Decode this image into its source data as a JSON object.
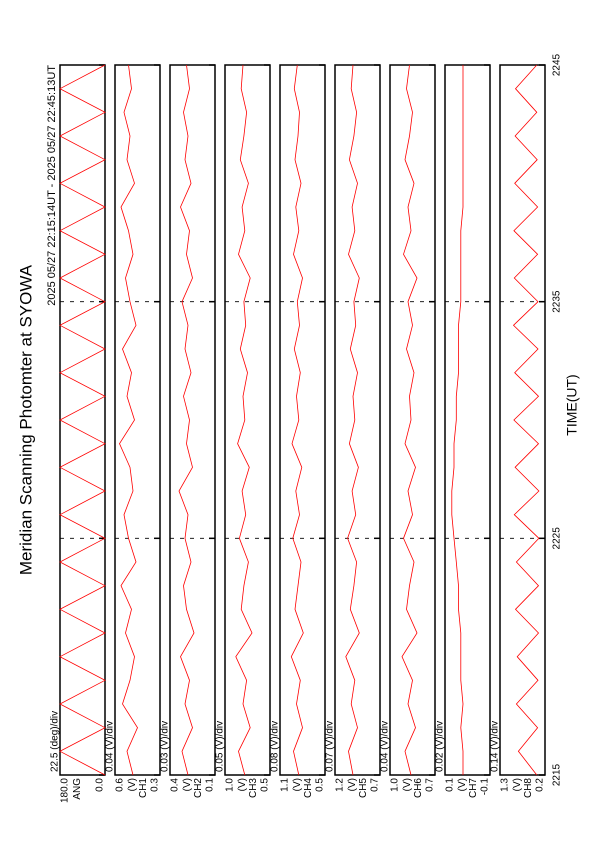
{
  "chart_data": {
    "type": "line",
    "title": "Meridian Scanning Photomter at SYOWA",
    "subtitle": "2025 05/27 22:15:14UT - 2025 05/27 22:45:13UT",
    "xlabel": "TIME(UT)",
    "x": [
      2215,
      2216,
      2217,
      2218,
      2219,
      2220,
      2221,
      2222,
      2223,
      2224,
      2225,
      2226,
      2227,
      2228,
      2229,
      2230,
      2231,
      2232,
      2233,
      2234,
      2235,
      2236,
      2237,
      2238,
      2239,
      2240,
      2241,
      2242,
      2243,
      2244,
      2245
    ],
    "xlim": [
      2215,
      2245
    ],
    "xticks": [
      2215,
      2225,
      2235,
      2245
    ],
    "grid": true,
    "panels": [
      {
        "scale_label": "22.5 (deg)/div",
        "ylabel": "ANG",
        "color": "#ff0000",
        "ylim": [
          0,
          180
        ],
        "yticks": [
          {
            "value": 0,
            "label": "0.0"
          },
          {
            "value": 180,
            "label": "180.0"
          }
        ],
        "values": [
          0,
          180,
          0,
          180,
          0,
          180,
          0,
          180,
          0,
          180,
          0,
          180,
          0,
          180,
          0,
          180,
          0,
          180,
          0,
          180,
          0,
          180,
          0,
          180,
          0,
          180,
          0,
          180,
          0,
          180,
          0
        ]
      },
      {
        "scale_label": "0.04 (V)/div",
        "ylabel": "(V)",
        "channel": "CH1",
        "color": "#ff0000",
        "ylim": [
          0.3,
          0.6
        ],
        "yticks": [
          0.3,
          0.6
        ],
        "values": [
          0.48,
          0.52,
          0.45,
          0.55,
          0.5,
          0.47,
          0.53,
          0.49,
          0.56,
          0.46,
          0.51,
          0.54,
          0.48,
          0.5,
          0.57,
          0.47,
          0.52,
          0.49,
          0.55,
          0.46,
          0.5,
          0.53,
          0.48,
          0.51,
          0.56,
          0.47,
          0.52,
          0.5,
          0.54,
          0.49,
          0.51
        ]
      },
      {
        "scale_label": "0.03 (V)/div",
        "ylabel": "(V)",
        "channel": "CH2",
        "color": "#ff0000",
        "ylim": [
          0.1,
          0.4
        ],
        "yticks": [
          0.1,
          0.4
        ],
        "values": [
          0.28,
          0.32,
          0.25,
          0.3,
          0.27,
          0.33,
          0.24,
          0.29,
          0.31,
          0.26,
          0.3,
          0.28,
          0.34,
          0.25,
          0.29,
          0.27,
          0.31,
          0.26,
          0.3,
          0.28,
          0.32,
          0.25,
          0.29,
          0.27,
          0.33,
          0.26,
          0.3,
          0.28,
          0.31,
          0.27,
          0.29
        ]
      },
      {
        "scale_label": "0.05 (V)/div",
        "ylabel": "(V)",
        "channel": "CH3",
        "color": "#ff0000",
        "ylim": [
          0.5,
          1.0
        ],
        "yticks": [
          0.5,
          {
            "value": 1.0,
            "label": "1.0"
          }
        ],
        "values": [
          0.78,
          0.85,
          0.72,
          0.8,
          0.76,
          0.88,
          0.7,
          0.82,
          0.79,
          0.74,
          0.84,
          0.77,
          0.81,
          0.73,
          0.86,
          0.78,
          0.8,
          0.75,
          0.83,
          0.77,
          0.79,
          0.72,
          0.85,
          0.78,
          0.81,
          0.74,
          0.83,
          0.79,
          0.76,
          0.82,
          0.8
        ]
      },
      {
        "scale_label": "0.08 (V)/div",
        "ylabel": "(V)",
        "channel": "CH4",
        "color": "#ff0000",
        "ylim": [
          0.5,
          1.1
        ],
        "yticks": [
          0.5,
          1.1
        ],
        "values": [
          0.85,
          0.92,
          0.8,
          0.88,
          0.83,
          0.95,
          0.79,
          0.9,
          0.86,
          0.82,
          0.93,
          0.84,
          0.89,
          0.81,
          0.94,
          0.85,
          0.88,
          0.83,
          0.91,
          0.84,
          0.87,
          0.8,
          0.92,
          0.85,
          0.89,
          0.82,
          0.9,
          0.86,
          0.84,
          0.91,
          0.87
        ]
      },
      {
        "scale_label": "0.07 (V)/div",
        "ylabel": "(V)",
        "channel": "CH5",
        "color": "#ff0000",
        "ylim": [
          0.7,
          1.2
        ],
        "yticks": [
          0.7,
          1.2
        ],
        "values": [
          1.0,
          1.05,
          0.95,
          1.02,
          0.98,
          1.08,
          0.93,
          1.03,
          0.99,
          0.96,
          1.06,
          0.97,
          1.01,
          0.94,
          1.04,
          0.98,
          1.0,
          0.95,
          1.03,
          0.97,
          0.99,
          0.93,
          1.05,
          0.98,
          1.01,
          0.95,
          1.04,
          0.99,
          0.96,
          1.02,
          1.0
        ]
      },
      {
        "scale_label": "0.04 (V)/div",
        "ylabel": "(V)",
        "channel": "CH6",
        "color": "#ff0000",
        "ylim": [
          0.7,
          1.0
        ],
        "yticks": [
          0.7,
          {
            "value": 1.0,
            "label": "1.0"
          }
        ],
        "values": [
          0.86,
          0.9,
          0.83,
          0.88,
          0.85,
          0.92,
          0.82,
          0.89,
          0.87,
          0.84,
          0.91,
          0.85,
          0.88,
          0.83,
          0.9,
          0.86,
          0.87,
          0.84,
          0.89,
          0.85,
          0.88,
          0.82,
          0.91,
          0.86,
          0.88,
          0.84,
          0.9,
          0.87,
          0.85,
          0.89,
          0.87
        ]
      },
      {
        "scale_label": "0.02 (V)/div",
        "ylabel": "(V)",
        "channel": "CH7",
        "color": "#ff0000",
        "ylim": [
          -0.1,
          0.1
        ],
        "yticks": [
          -0.1,
          0.1
        ],
        "values": [
          0.02,
          0.02,
          0.03,
          0.02,
          0.03,
          0.03,
          0.03,
          0.04,
          0.04,
          0.05,
          0.06,
          0.07,
          0.07,
          0.06,
          0.06,
          0.05,
          0.05,
          0.04,
          0.04,
          0.04,
          0.03,
          0.03,
          0.03,
          0.03,
          0.02,
          0.02,
          0.02,
          0.02,
          0.02,
          0.02,
          0.02
        ]
      },
      {
        "scale_label": "0.14 (V)/div",
        "ylabel": "(V)",
        "channel": "CH8",
        "color": "#ff0000",
        "ylim": [
          0.2,
          1.3
        ],
        "yticks": [
          0.2,
          1.3
        ],
        "values": [
          0.4,
          0.85,
          0.38,
          0.9,
          0.37,
          0.88,
          0.36,
          0.92,
          0.36,
          0.9,
          0.35,
          0.95,
          0.35,
          0.93,
          0.36,
          0.96,
          0.36,
          0.94,
          0.37,
          0.97,
          0.37,
          0.95,
          0.38,
          0.96,
          0.38,
          0.94,
          0.39,
          0.93,
          0.4,
          0.92,
          0.4
        ]
      }
    ]
  }
}
